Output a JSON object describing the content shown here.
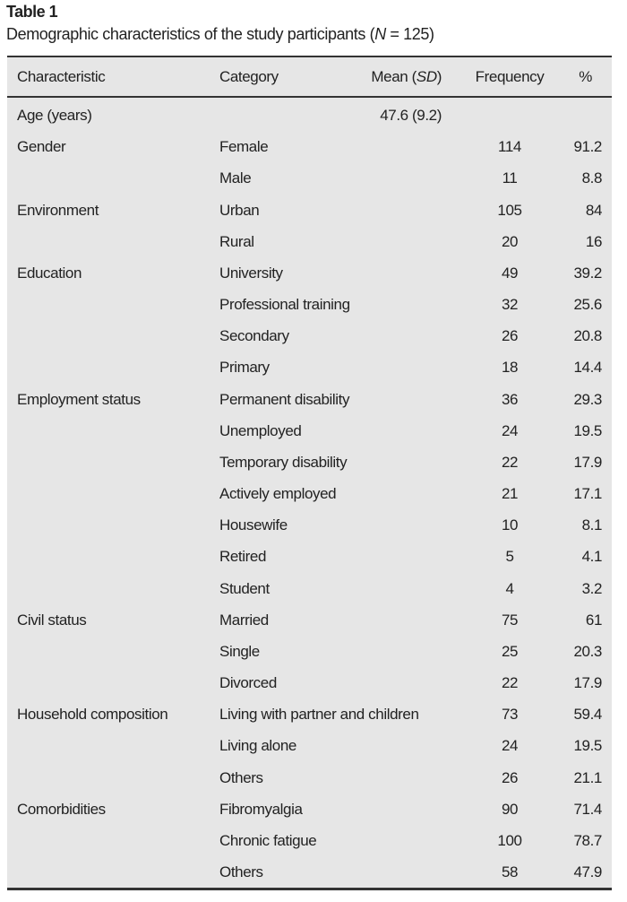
{
  "table": {
    "label": "Table 1",
    "caption_prefix": "Demographic characteristics of the study participants (",
    "caption_n": "N",
    "caption_suffix": " = 125)",
    "headers": {
      "characteristic": "Characteristic",
      "category": "Category",
      "mean": "Mean (",
      "mean_sd": "SD",
      "mean_close": ")",
      "frequency": "Frequency",
      "percent": "%"
    },
    "rows": [
      {
        "characteristic": "Age (years)",
        "category": "",
        "mean": "47.6 (9.2)",
        "frequency": "",
        "percent": ""
      },
      {
        "characteristic": "Gender",
        "category": "Female",
        "mean": "",
        "frequency": "114",
        "percent": "91.2"
      },
      {
        "characteristic": "",
        "category": "Male",
        "mean": "",
        "frequency": "11",
        "percent": "8.8"
      },
      {
        "characteristic": "Environment",
        "category": "Urban",
        "mean": "",
        "frequency": "105",
        "percent": "84"
      },
      {
        "characteristic": "",
        "category": "Rural",
        "mean": "",
        "frequency": "20",
        "percent": "16"
      },
      {
        "characteristic": "Education",
        "category": "University",
        "mean": "",
        "frequency": "49",
        "percent": "39.2"
      },
      {
        "characteristic": "",
        "category": "Professional training",
        "mean": "",
        "frequency": "32",
        "percent": "25.6"
      },
      {
        "characteristic": "",
        "category": "Secondary",
        "mean": "",
        "frequency": "26",
        "percent": "20.8"
      },
      {
        "characteristic": "",
        "category": "Primary",
        "mean": "",
        "frequency": "18",
        "percent": "14.4"
      },
      {
        "characteristic": "Employment status",
        "category": "Permanent disability",
        "mean": "",
        "frequency": "36",
        "percent": "29.3"
      },
      {
        "characteristic": "",
        "category": "Unemployed",
        "mean": "",
        "frequency": "24",
        "percent": "19.5"
      },
      {
        "characteristic": "",
        "category": "Temporary disability",
        "mean": "",
        "frequency": "22",
        "percent": "17.9"
      },
      {
        "characteristic": "",
        "category": "Actively employed",
        "mean": "",
        "frequency": "21",
        "percent": "17.1"
      },
      {
        "characteristic": "",
        "category": "Housewife",
        "mean": "",
        "frequency": "10",
        "percent": "8.1"
      },
      {
        "characteristic": "",
        "category": "Retired",
        "mean": "",
        "frequency": "5",
        "percent": "4.1"
      },
      {
        "characteristic": "",
        "category": "Student",
        "mean": "",
        "frequency": "4",
        "percent": "3.2"
      },
      {
        "characteristic": "Civil status",
        "category": "Married",
        "mean": "",
        "frequency": "75",
        "percent": "61"
      },
      {
        "characteristic": "",
        "category": "Single",
        "mean": "",
        "frequency": "25",
        "percent": "20.3"
      },
      {
        "characteristic": "",
        "category": "Divorced",
        "mean": "",
        "frequency": "22",
        "percent": "17.9"
      },
      {
        "characteristic": "Household composition",
        "category": "Living with partner and children",
        "mean": "",
        "frequency": "73",
        "percent": "59.4"
      },
      {
        "characteristic": "",
        "category": "Living alone",
        "mean": "",
        "frequency": "24",
        "percent": "19.5"
      },
      {
        "characteristic": "",
        "category": "Others",
        "mean": "",
        "frequency": "26",
        "percent": "21.1"
      },
      {
        "characteristic": "Comorbidities",
        "category": "Fibromyalgia",
        "mean": "",
        "frequency": "90",
        "percent": "71.4"
      },
      {
        "characteristic": "",
        "category": "Chronic fatigue",
        "mean": "",
        "frequency": "100",
        "percent": "78.7"
      },
      {
        "characteristic": "",
        "category": "Others",
        "mean": "",
        "frequency": "58",
        "percent": "47.9"
      }
    ]
  }
}
